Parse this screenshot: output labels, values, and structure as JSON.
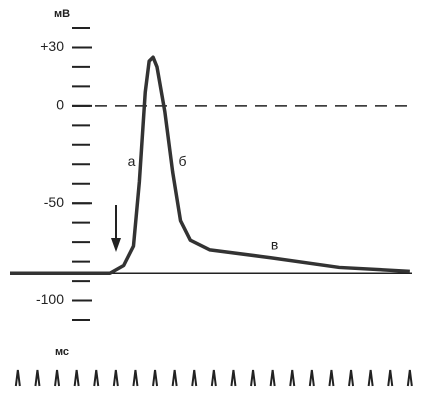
{
  "chart_data": {
    "type": "line",
    "y_unit": "мВ",
    "x_unit": "мс",
    "x": [
      -0.4,
      4.7,
      5.4,
      5.9,
      6.2,
      6.5,
      6.7,
      6.9,
      7.1,
      7.5,
      7.9,
      8.3,
      8.8,
      9.8,
      12.9,
      16.4,
      20
    ],
    "series": [
      {
        "color": "#333333",
        "values": [
          -86,
          -86,
          -82,
          -72,
          -39,
          7,
          23,
          25,
          20,
          -3,
          -34,
          -59,
          -69,
          -74,
          -78,
          -83,
          -85
        ]
      }
    ],
    "xlim": [
      -0.4,
      21
    ],
    "ylim": [
      -110,
      40
    ],
    "yticks": [
      {
        "value": 30,
        "label": "+30"
      },
      0,
      -50,
      -100
    ],
    "minor_yticks": [
      40,
      30,
      20,
      10,
      0,
      -10,
      -20,
      -30,
      -40,
      -50,
      -60,
      -70,
      -80,
      -90,
      -100,
      -110
    ],
    "time_marks": [
      0,
      1,
      2,
      3,
      4,
      5,
      6,
      7,
      8,
      9,
      10,
      11,
      12,
      13,
      14,
      15,
      16,
      17,
      18,
      19,
      20
    ],
    "zero_line": 0,
    "baseline": -86,
    "annotations": [
      {
        "text": "а",
        "x": 5.8,
        "y": -29
      },
      {
        "text": "б",
        "x": 8.4,
        "y": -29
      },
      {
        "text": "в",
        "x": 13.1,
        "y": -72
      }
    ]
  }
}
